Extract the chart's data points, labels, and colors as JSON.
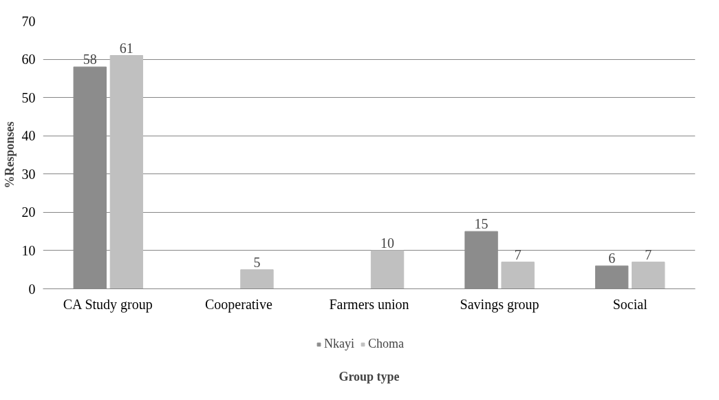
{
  "chart_data": {
    "type": "bar",
    "xlabel": "Group type",
    "ylabel": "%Responses",
    "categories": [
      "CA Study group",
      "Cooperative",
      "Farmers union",
      "Savings group",
      "Social"
    ],
    "series": [
      {
        "name": "Nkayi",
        "color": "#8c8c8c",
        "values": [
          58,
          null,
          null,
          15,
          6
        ]
      },
      {
        "name": "Choma",
        "color": "#c0c0c0",
        "values": [
          61,
          5,
          10,
          7,
          7
        ]
      }
    ],
    "ylim": [
      0,
      70
    ],
    "yticks": [
      0,
      10,
      20,
      30,
      40,
      50,
      60,
      70
    ],
    "grid": "y",
    "legend": "bottom",
    "data_labels": true
  }
}
